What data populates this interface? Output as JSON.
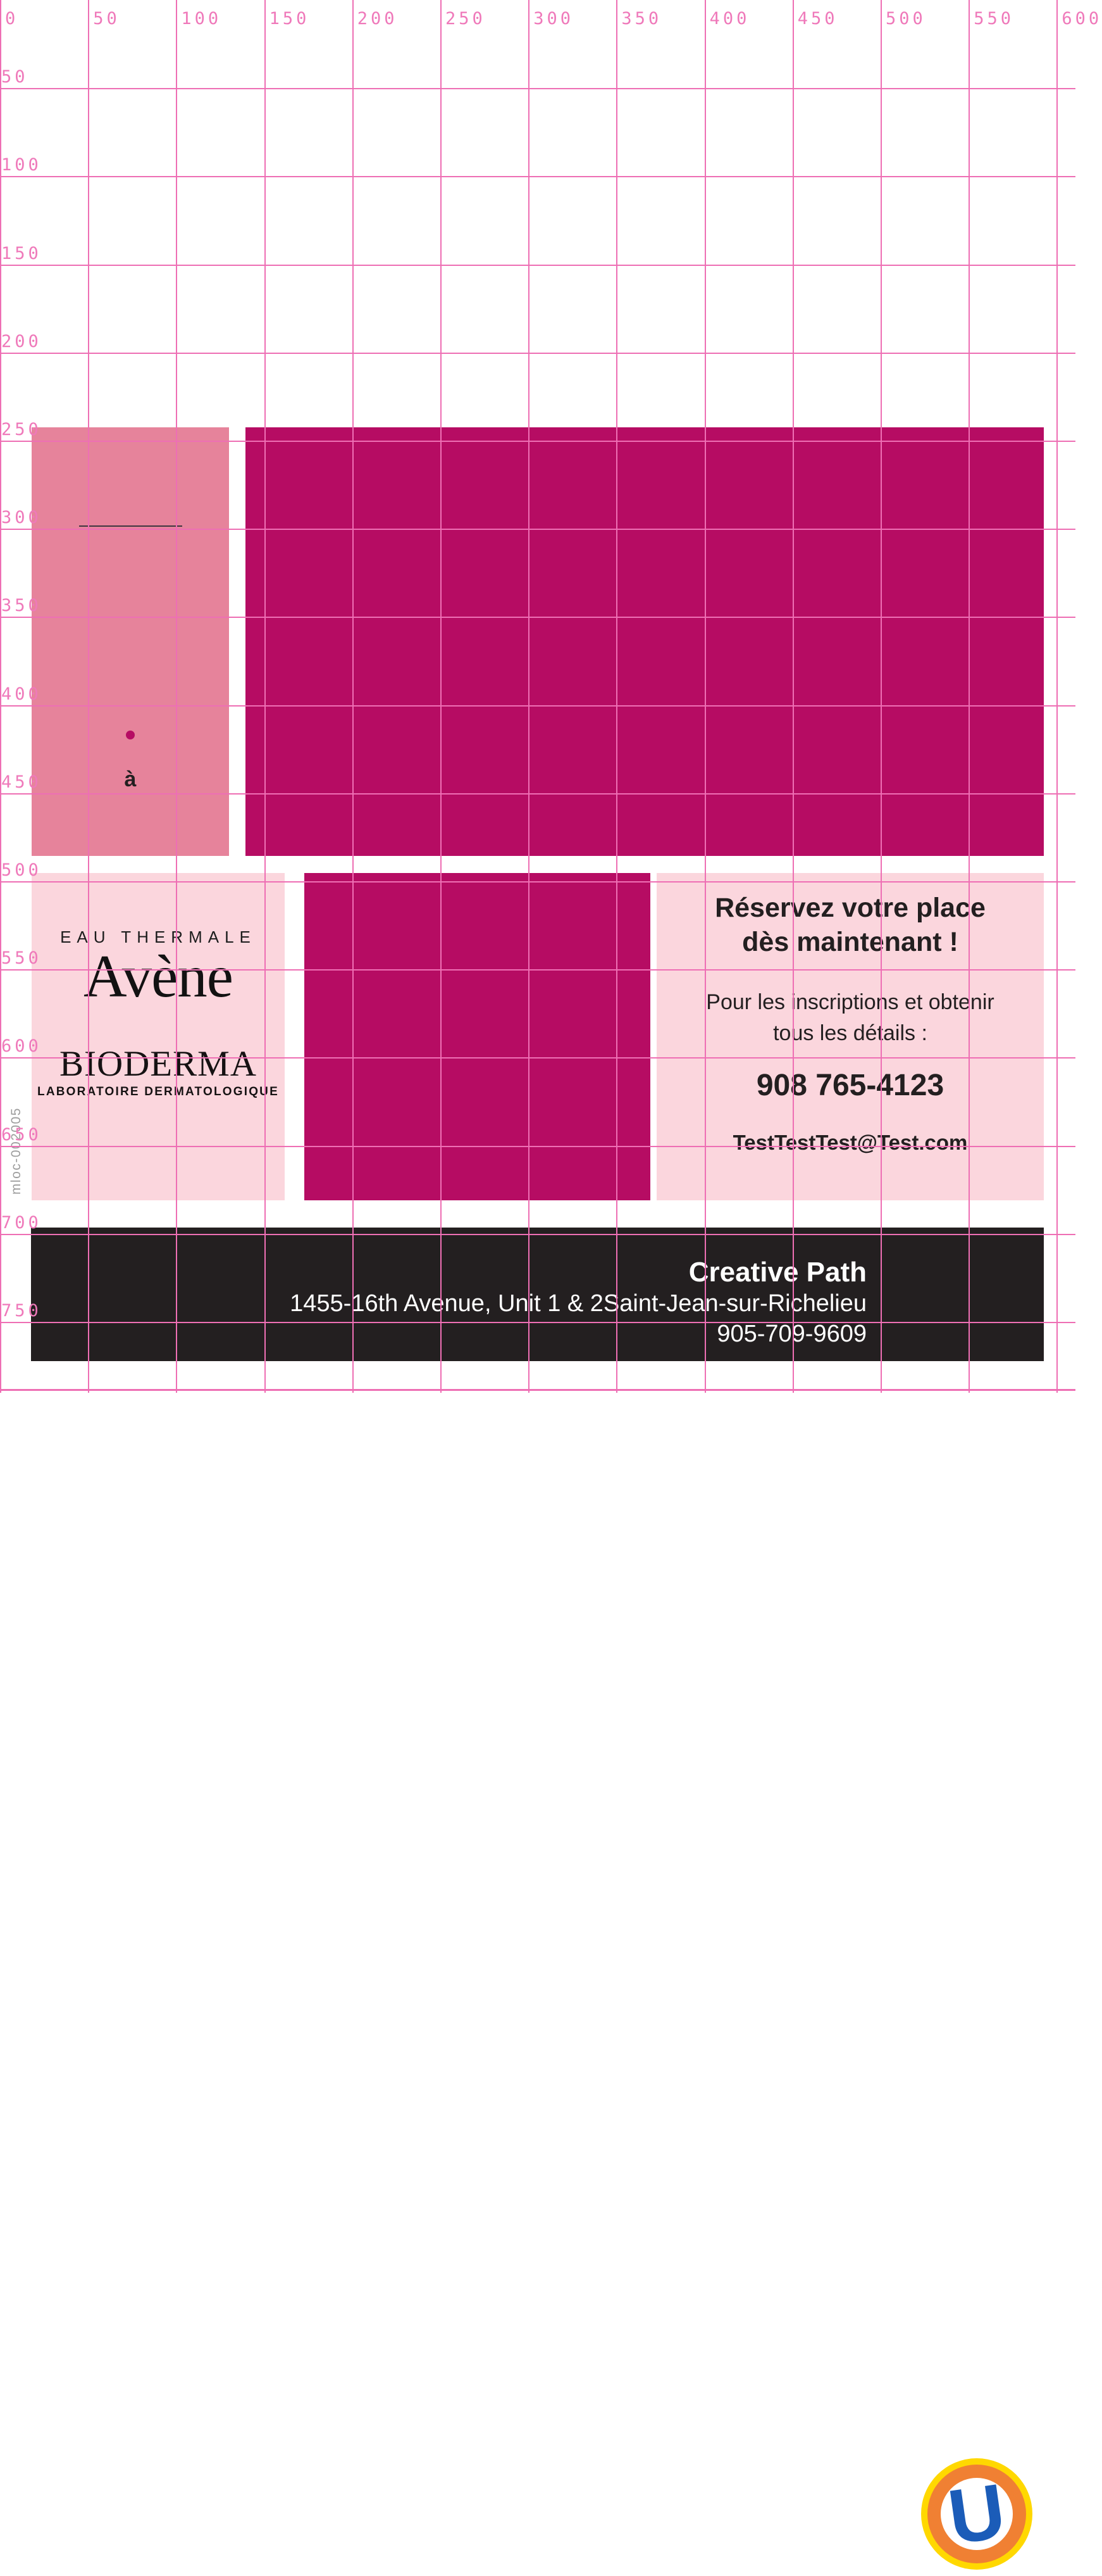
{
  "ruler": {
    "top_labels": [
      "0",
      "50",
      "100",
      "150",
      "200",
      "250",
      "300",
      "350",
      "400",
      "450",
      "500",
      "550",
      "600"
    ],
    "left_labels": [
      "50",
      "100",
      "150",
      "200",
      "250",
      "300",
      "350",
      "400",
      "450",
      "500",
      "550",
      "600",
      "650",
      "700",
      "750"
    ]
  },
  "canvas": {
    "annotation_a": "à",
    "side_code": "mloc-002005"
  },
  "brands": {
    "avene_tagline": "EAU THERMALE",
    "avene_name": "Avène",
    "bioderma_name": "BIODERMA",
    "bioderma_subtitle": "LABORATOIRE DERMATOLOGIQUE"
  },
  "offer": {
    "headline_line1": "Réservez votre place",
    "headline_line2": "dès maintenant !",
    "body_line1": "Pour les inscriptions et obtenir",
    "body_line2": "tous les détails :",
    "phone": "908 765-4123",
    "email": "TestTestTest@Test.com"
  },
  "footer": {
    "company": "Creative Path",
    "address": "1455-16th Avenue, Unit 1 & 2Saint-Jean-sur-Richelieu",
    "phone": "905-709-9609",
    "logo_letter": "U"
  },
  "colors": {
    "magenta": "#b60c63",
    "rose": "#e6839b",
    "light_pink": "#fbd6dd",
    "grid_line": "#ee6fb4",
    "ruler_label": "#ef79ba",
    "bar_black": "#231f20",
    "logo_blue": "#1b5cb8",
    "logo_orange": "#f08033",
    "logo_yellow": "#ffd800",
    "side_code_gray": "#9d9d9d"
  }
}
